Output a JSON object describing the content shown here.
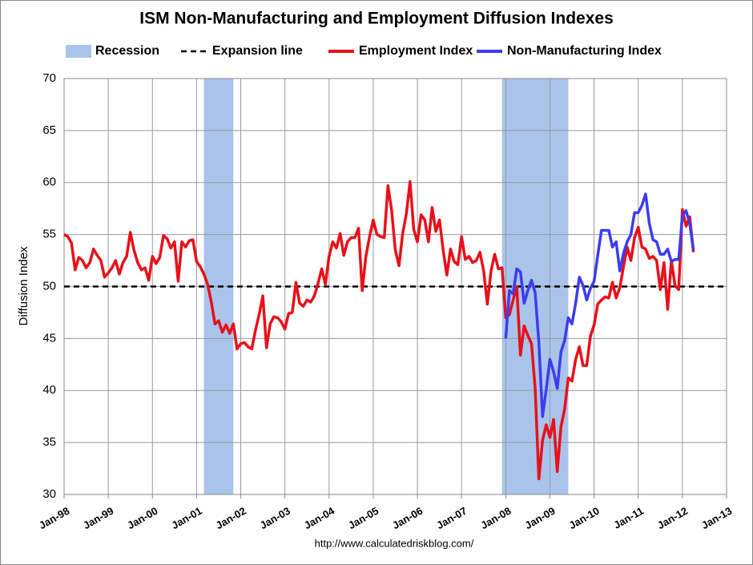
{
  "chart_data": {
    "type": "line",
    "title": "ISM Non-Manufacturing and Employment Diffusion Indexes",
    "y_label": "Diffusion Index",
    "source": "http://www.calculatedriskblog.com/",
    "x": [
      "1998-01",
      "1998-02",
      "1998-03",
      "1998-04",
      "1998-05",
      "1998-06",
      "1998-07",
      "1998-08",
      "1998-09",
      "1998-10",
      "1998-11",
      "1998-12",
      "1999-01",
      "1999-02",
      "1999-03",
      "1999-04",
      "1999-05",
      "1999-06",
      "1999-07",
      "1999-08",
      "1999-09",
      "1999-10",
      "1999-11",
      "1999-12",
      "2000-01",
      "2000-02",
      "2000-03",
      "2000-04",
      "2000-05",
      "2000-06",
      "2000-07",
      "2000-08",
      "2000-09",
      "2000-10",
      "2000-11",
      "2000-12",
      "2001-01",
      "2001-02",
      "2001-03",
      "2001-04",
      "2001-05",
      "2001-06",
      "2001-07",
      "2001-08",
      "2001-09",
      "2001-10",
      "2001-11",
      "2001-12",
      "2002-01",
      "2002-02",
      "2002-03",
      "2002-04",
      "2002-05",
      "2002-06",
      "2002-07",
      "2002-08",
      "2002-09",
      "2002-10",
      "2002-11",
      "2002-12",
      "2003-01",
      "2003-02",
      "2003-03",
      "2003-04",
      "2003-05",
      "2003-06",
      "2003-07",
      "2003-08",
      "2003-09",
      "2003-10",
      "2003-11",
      "2003-12",
      "2004-01",
      "2004-02",
      "2004-03",
      "2004-04",
      "2004-05",
      "2004-06",
      "2004-07",
      "2004-08",
      "2004-09",
      "2004-10",
      "2004-11",
      "2004-12",
      "2005-01",
      "2005-02",
      "2005-03",
      "2005-04",
      "2005-05",
      "2005-06",
      "2005-07",
      "2005-08",
      "2005-09",
      "2005-10",
      "2005-11",
      "2005-12",
      "2006-01",
      "2006-02",
      "2006-03",
      "2006-04",
      "2006-05",
      "2006-06",
      "2006-07",
      "2006-08",
      "2006-09",
      "2006-10",
      "2006-11",
      "2006-12",
      "2007-01",
      "2007-02",
      "2007-03",
      "2007-04",
      "2007-05",
      "2007-06",
      "2007-07",
      "2007-08",
      "2007-09",
      "2007-10",
      "2007-11",
      "2007-12",
      "2008-01",
      "2008-02",
      "2008-03",
      "2008-04",
      "2008-05",
      "2008-06",
      "2008-07",
      "2008-08",
      "2008-09",
      "2008-10",
      "2008-11",
      "2008-12",
      "2009-01",
      "2009-02",
      "2009-03",
      "2009-04",
      "2009-05",
      "2009-06",
      "2009-07",
      "2009-08",
      "2009-09",
      "2009-10",
      "2009-11",
      "2009-12",
      "2010-01",
      "2010-02",
      "2010-03",
      "2010-04",
      "2010-05",
      "2010-06",
      "2010-07",
      "2010-08",
      "2010-09",
      "2010-10",
      "2010-11",
      "2010-12",
      "2011-01",
      "2011-02",
      "2011-03",
      "2011-04",
      "2011-05",
      "2011-06",
      "2011-07",
      "2011-08",
      "2011-09",
      "2011-10",
      "2011-11",
      "2011-12",
      "2012-01",
      "2012-02",
      "2012-03",
      "2012-04"
    ],
    "series": [
      {
        "name": "Employment Index",
        "color": "#e8101a",
        "values": [
          55,
          54.8,
          54.2,
          51.6,
          52.8,
          52.5,
          51.8,
          52.3,
          53.6,
          53,
          52.5,
          50.9,
          51.3,
          51.8,
          52.5,
          51.2,
          52.3,
          52.9,
          55.2,
          53.5,
          52.3,
          51.6,
          51.8,
          50.6,
          52.9,
          52.2,
          52.8,
          54.9,
          54.6,
          53.7,
          54.3,
          50.5,
          54.3,
          53.8,
          54.4,
          54.5,
          52.4,
          51.9,
          51.2,
          50.2,
          48.5,
          46.4,
          46.7,
          45.6,
          46.3,
          45.5,
          46.4,
          44,
          44.5,
          44.6,
          44.2,
          44,
          45.8,
          47.3,
          49.1,
          44.1,
          46.4,
          47.1,
          47,
          46.6,
          45.9,
          47.4,
          47.5,
          50.4,
          48.4,
          48.1,
          48.7,
          48.5,
          49.1,
          50.3,
          51.7,
          50.2,
          52.9,
          54.3,
          53.7,
          55.1,
          53,
          54.3,
          54.7,
          54.7,
          55.6,
          49.6,
          52.9,
          54.8,
          56.4,
          55,
          54.8,
          54.7,
          59.7,
          57.3,
          53.5,
          52,
          55.1,
          57,
          60.1,
          55.5,
          54.3,
          56.9,
          56.4,
          54.3,
          57.6,
          55.3,
          56.4,
          53.5,
          51.1,
          53.6,
          52.4,
          52.1,
          54.8,
          52.6,
          52.9,
          52.3,
          52.5,
          53.3,
          51.5,
          48.3,
          51.5,
          53.1,
          51.7,
          51.8,
          47,
          47.3,
          48.7,
          50,
          43.4,
          46.2,
          45.3,
          44.5,
          40.2,
          31.5,
          35.2,
          36.7,
          35.5,
          37.2,
          32.2,
          36.5,
          38.2,
          41.2,
          40.9,
          43,
          44.2,
          42.4,
          42.4,
          45.2,
          46.3,
          48.3,
          48.7,
          49,
          48.9,
          50.4,
          48.9,
          49.9,
          51.9,
          53.8,
          52.5,
          54.7,
          55.7,
          53.8,
          53.6,
          52.7,
          52.9,
          52.5,
          49.7,
          52.3,
          47.8,
          52.5,
          50.1,
          49.7,
          57.4,
          55.8,
          56.7,
          53.3
        ]
      },
      {
        "name": "Non-Manufacturing Index",
        "color": "#3c3cf0",
        "values": [
          null,
          null,
          null,
          null,
          null,
          null,
          null,
          null,
          null,
          null,
          null,
          null,
          null,
          null,
          null,
          null,
          null,
          null,
          null,
          null,
          null,
          null,
          null,
          null,
          null,
          null,
          null,
          null,
          null,
          null,
          null,
          null,
          null,
          null,
          null,
          null,
          null,
          null,
          null,
          null,
          null,
          null,
          null,
          null,
          null,
          null,
          null,
          null,
          null,
          null,
          null,
          null,
          null,
          null,
          null,
          null,
          null,
          null,
          null,
          null,
          null,
          null,
          null,
          null,
          null,
          null,
          null,
          null,
          null,
          null,
          null,
          null,
          null,
          null,
          null,
          null,
          null,
          null,
          null,
          null,
          null,
          null,
          null,
          null,
          null,
          null,
          null,
          null,
          null,
          null,
          null,
          null,
          null,
          null,
          null,
          null,
          null,
          null,
          null,
          null,
          null,
          null,
          null,
          null,
          null,
          null,
          null,
          null,
          null,
          null,
          null,
          null,
          null,
          null,
          null,
          null,
          null,
          null,
          null,
          null,
          45,
          49.6,
          49.3,
          51.7,
          51.4,
          48.4,
          49.6,
          50.6,
          49.4,
          44.6,
          37.5,
          40.1,
          43,
          41.8,
          40.2,
          43.7,
          44.8,
          47,
          46.4,
          48.4,
          50.9,
          50.1,
          48.7,
          49.8,
          50.5,
          53,
          55.4,
          55.4,
          55.4,
          53.8,
          54.3,
          51.5,
          53.2,
          54.3,
          55,
          57.1,
          57.1,
          57.8,
          58.9,
          56.1,
          54.5,
          54.3,
          53.1,
          53.1,
          53.6,
          52.4,
          52.6,
          52.6,
          56.8,
          57.3,
          56,
          53.5
        ]
      }
    ],
    "recessions": {
      "name": "Recession",
      "color": "#a9c4eb",
      "periods": [
        [
          "2001-03",
          "2001-11"
        ],
        [
          "2007-12",
          "2009-06"
        ]
      ]
    },
    "expansion_line": {
      "name": "Expansion line",
      "value": 50,
      "color": "#000000"
    },
    "xlim": [
      "1998-01",
      "2013-01"
    ],
    "xticks": [
      {
        "value": "1998-01",
        "label": "Jan-98"
      },
      {
        "value": "1999-01",
        "label": "Jan-99"
      },
      {
        "value": "2000-01",
        "label": "Jan-00"
      },
      {
        "value": "2001-01",
        "label": "Jan-01"
      },
      {
        "value": "2002-01",
        "label": "Jan-02"
      },
      {
        "value": "2003-01",
        "label": "Jan-03"
      },
      {
        "value": "2004-01",
        "label": "Jan-04"
      },
      {
        "value": "2005-01",
        "label": "Jan-05"
      },
      {
        "value": "2006-01",
        "label": "Jan-06"
      },
      {
        "value": "2007-01",
        "label": "Jan-07"
      },
      {
        "value": "2008-01",
        "label": "Jan-08"
      },
      {
        "value": "2009-01",
        "label": "Jan-09"
      },
      {
        "value": "2010-01",
        "label": "Jan-10"
      },
      {
        "value": "2011-01",
        "label": "Jan-11"
      },
      {
        "value": "2012-01",
        "label": "Jan-12"
      },
      {
        "value": "2013-01",
        "label": "Jan-13"
      }
    ],
    "ylim": [
      30,
      70
    ],
    "yticks": [
      30,
      35,
      40,
      45,
      50,
      55,
      60,
      65,
      70
    ],
    "grid": true
  }
}
